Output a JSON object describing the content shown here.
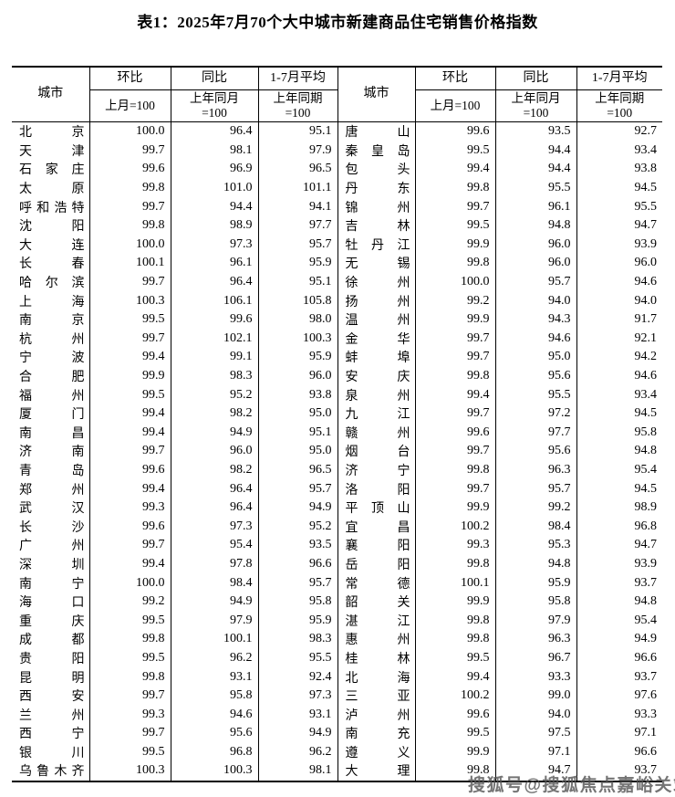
{
  "title": "表1：2025年7月70个大中城市新建商品住宅销售价格指数",
  "watermark": "搜狐号@搜狐焦点嘉峪关站",
  "header": {
    "city": "城市",
    "cols": [
      {
        "label": "环比",
        "sub": "上月=100"
      },
      {
        "label": "同比",
        "sub": "上年同月\n=100"
      },
      {
        "label": "1-7月平均",
        "sub": "上年同期\n=100"
      }
    ]
  },
  "table": {
    "rows": [
      {
        "left": {
          "city": "北京",
          "mom": "100.0",
          "yoy": "96.4",
          "avg": "95.1"
        },
        "right": {
          "city": "唐山",
          "mom": "99.6",
          "yoy": "93.5",
          "avg": "92.7"
        }
      },
      {
        "left": {
          "city": "天津",
          "mom": "99.7",
          "yoy": "98.1",
          "avg": "97.9"
        },
        "right": {
          "city": "秦皇岛",
          "mom": "99.5",
          "yoy": "94.4",
          "avg": "93.4"
        }
      },
      {
        "left": {
          "city": "石家庄",
          "mom": "99.6",
          "yoy": "96.9",
          "avg": "96.5"
        },
        "right": {
          "city": "包头",
          "mom": "99.4",
          "yoy": "94.4",
          "avg": "93.8"
        }
      },
      {
        "left": {
          "city": "太原",
          "mom": "99.8",
          "yoy": "101.0",
          "avg": "101.1"
        },
        "right": {
          "city": "丹东",
          "mom": "99.8",
          "yoy": "95.5",
          "avg": "94.5"
        }
      },
      {
        "left": {
          "city": "呼和浩特",
          "mom": "99.7",
          "yoy": "94.4",
          "avg": "94.1"
        },
        "right": {
          "city": "锦州",
          "mom": "99.7",
          "yoy": "96.1",
          "avg": "95.5"
        }
      },
      {
        "left": {
          "city": "沈阳",
          "mom": "99.8",
          "yoy": "98.9",
          "avg": "97.7"
        },
        "right": {
          "city": "吉林",
          "mom": "99.5",
          "yoy": "94.8",
          "avg": "94.7"
        }
      },
      {
        "left": {
          "city": "大连",
          "mom": "100.0",
          "yoy": "97.3",
          "avg": "95.7"
        },
        "right": {
          "city": "牡丹江",
          "mom": "99.9",
          "yoy": "96.0",
          "avg": "93.9"
        }
      },
      {
        "left": {
          "city": "长春",
          "mom": "100.1",
          "yoy": "96.1",
          "avg": "95.9"
        },
        "right": {
          "city": "无锡",
          "mom": "99.8",
          "yoy": "96.0",
          "avg": "96.0"
        }
      },
      {
        "left": {
          "city": "哈尔滨",
          "mom": "99.7",
          "yoy": "96.4",
          "avg": "95.1"
        },
        "right": {
          "city": "徐州",
          "mom": "100.0",
          "yoy": "95.7",
          "avg": "94.6"
        }
      },
      {
        "left": {
          "city": "上海",
          "mom": "100.3",
          "yoy": "106.1",
          "avg": "105.8"
        },
        "right": {
          "city": "扬州",
          "mom": "99.2",
          "yoy": "94.0",
          "avg": "94.0"
        }
      },
      {
        "left": {
          "city": "南京",
          "mom": "99.5",
          "yoy": "99.6",
          "avg": "98.0"
        },
        "right": {
          "city": "温州",
          "mom": "99.9",
          "yoy": "94.3",
          "avg": "91.7"
        }
      },
      {
        "left": {
          "city": "杭州",
          "mom": "99.7",
          "yoy": "102.1",
          "avg": "100.3"
        },
        "right": {
          "city": "金华",
          "mom": "99.7",
          "yoy": "94.6",
          "avg": "92.1"
        }
      },
      {
        "left": {
          "city": "宁波",
          "mom": "99.4",
          "yoy": "99.1",
          "avg": "95.9"
        },
        "right": {
          "city": "蚌埠",
          "mom": "99.7",
          "yoy": "95.0",
          "avg": "94.2"
        }
      },
      {
        "left": {
          "city": "合肥",
          "mom": "99.9",
          "yoy": "98.3",
          "avg": "96.0"
        },
        "right": {
          "city": "安庆",
          "mom": "99.8",
          "yoy": "95.6",
          "avg": "94.6"
        }
      },
      {
        "left": {
          "city": "福州",
          "mom": "99.5",
          "yoy": "95.2",
          "avg": "93.8"
        },
        "right": {
          "city": "泉州",
          "mom": "99.4",
          "yoy": "95.5",
          "avg": "93.4"
        }
      },
      {
        "left": {
          "city": "厦门",
          "mom": "99.4",
          "yoy": "98.2",
          "avg": "95.0"
        },
        "right": {
          "city": "九江",
          "mom": "99.7",
          "yoy": "97.2",
          "avg": "94.5"
        }
      },
      {
        "left": {
          "city": "南昌",
          "mom": "99.4",
          "yoy": "94.9",
          "avg": "95.1"
        },
        "right": {
          "city": "赣州",
          "mom": "99.6",
          "yoy": "97.7",
          "avg": "95.8"
        }
      },
      {
        "left": {
          "city": "济南",
          "mom": "99.7",
          "yoy": "96.0",
          "avg": "95.0"
        },
        "right": {
          "city": "烟台",
          "mom": "99.7",
          "yoy": "95.6",
          "avg": "94.8"
        }
      },
      {
        "left": {
          "city": "青岛",
          "mom": "99.6",
          "yoy": "98.2",
          "avg": "96.5"
        },
        "right": {
          "city": "济宁",
          "mom": "99.8",
          "yoy": "96.3",
          "avg": "95.4"
        }
      },
      {
        "left": {
          "city": "郑州",
          "mom": "99.4",
          "yoy": "96.4",
          "avg": "95.7"
        },
        "right": {
          "city": "洛阳",
          "mom": "99.7",
          "yoy": "95.7",
          "avg": "94.5"
        }
      },
      {
        "left": {
          "city": "武汉",
          "mom": "99.3",
          "yoy": "96.4",
          "avg": "94.9"
        },
        "right": {
          "city": "平顶山",
          "mom": "99.9",
          "yoy": "99.2",
          "avg": "98.9"
        }
      },
      {
        "left": {
          "city": "长沙",
          "mom": "99.6",
          "yoy": "97.3",
          "avg": "95.2"
        },
        "right": {
          "city": "宜昌",
          "mom": "100.2",
          "yoy": "98.4",
          "avg": "96.8"
        }
      },
      {
        "left": {
          "city": "广州",
          "mom": "99.7",
          "yoy": "95.4",
          "avg": "93.5"
        },
        "right": {
          "city": "襄阳",
          "mom": "99.3",
          "yoy": "95.3",
          "avg": "94.7"
        }
      },
      {
        "left": {
          "city": "深圳",
          "mom": "99.4",
          "yoy": "97.8",
          "avg": "96.6"
        },
        "right": {
          "city": "岳阳",
          "mom": "99.8",
          "yoy": "94.8",
          "avg": "93.9"
        }
      },
      {
        "left": {
          "city": "南宁",
          "mom": "100.0",
          "yoy": "98.4",
          "avg": "95.7"
        },
        "right": {
          "city": "常德",
          "mom": "100.1",
          "yoy": "95.9",
          "avg": "93.7"
        }
      },
      {
        "left": {
          "city": "海口",
          "mom": "99.2",
          "yoy": "94.9",
          "avg": "95.8"
        },
        "right": {
          "city": "韶关",
          "mom": "99.9",
          "yoy": "95.8",
          "avg": "94.8"
        }
      },
      {
        "left": {
          "city": "重庆",
          "mom": "99.5",
          "yoy": "97.9",
          "avg": "95.9"
        },
        "right": {
          "city": "湛江",
          "mom": "99.8",
          "yoy": "97.9",
          "avg": "95.4"
        }
      },
      {
        "left": {
          "city": "成都",
          "mom": "99.8",
          "yoy": "100.1",
          "avg": "98.3"
        },
        "right": {
          "city": "惠州",
          "mom": "99.8",
          "yoy": "96.3",
          "avg": "94.9"
        }
      },
      {
        "left": {
          "city": "贵阳",
          "mom": "99.5",
          "yoy": "96.2",
          "avg": "95.5"
        },
        "right": {
          "city": "桂林",
          "mom": "99.5",
          "yoy": "96.7",
          "avg": "96.6"
        }
      },
      {
        "left": {
          "city": "昆明",
          "mom": "99.8",
          "yoy": "93.1",
          "avg": "92.4"
        },
        "right": {
          "city": "北海",
          "mom": "99.4",
          "yoy": "93.3",
          "avg": "93.7"
        }
      },
      {
        "left": {
          "city": "西安",
          "mom": "99.7",
          "yoy": "95.8",
          "avg": "97.3"
        },
        "right": {
          "city": "三亚",
          "mom": "100.2",
          "yoy": "99.0",
          "avg": "97.6"
        }
      },
      {
        "left": {
          "city": "兰州",
          "mom": "99.3",
          "yoy": "94.6",
          "avg": "93.1"
        },
        "right": {
          "city": "泸州",
          "mom": "99.6",
          "yoy": "94.0",
          "avg": "93.3"
        }
      },
      {
        "left": {
          "city": "西宁",
          "mom": "99.7",
          "yoy": "95.6",
          "avg": "94.9"
        },
        "right": {
          "city": "南充",
          "mom": "99.5",
          "yoy": "97.5",
          "avg": "97.1"
        }
      },
      {
        "left": {
          "city": "银川",
          "mom": "99.5",
          "yoy": "96.8",
          "avg": "96.2"
        },
        "right": {
          "city": "遵义",
          "mom": "99.9",
          "yoy": "97.1",
          "avg": "96.6"
        }
      },
      {
        "left": {
          "city": "乌鲁木齐",
          "mom": "100.3",
          "yoy": "100.3",
          "avg": "98.1"
        },
        "right": {
          "city": "大理",
          "mom": "99.8",
          "yoy": "94.7",
          "avg": "93.7"
        }
      }
    ]
  }
}
